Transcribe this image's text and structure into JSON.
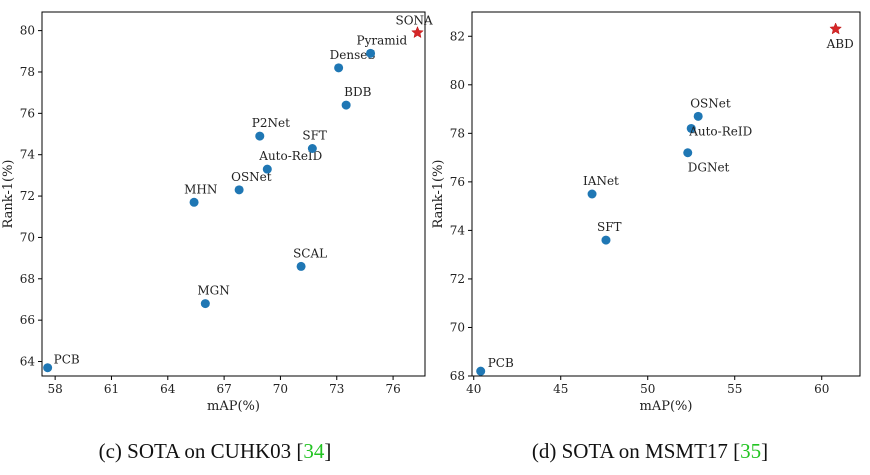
{
  "chart_data": [
    {
      "type": "scatter",
      "xlabel": "mAP(%)",
      "ylabel": "Rank-1(%)",
      "caption": {
        "text": "(c) SOTA on CUHK03 [",
        "ref": "34",
        "close": "]"
      },
      "xlim": [
        57.3,
        77.7
      ],
      "ylim": [
        63.3,
        80.9
      ],
      "xticks": [
        58,
        61,
        64,
        67,
        70,
        73,
        76
      ],
      "yticks": [
        64,
        66,
        68,
        70,
        72,
        74,
        76,
        78,
        80
      ],
      "points": [
        {
          "label": "PCB",
          "x": 57.6,
          "y": 63.7,
          "marker": "circle"
        },
        {
          "label": "MGN",
          "x": 66.0,
          "y": 66.8,
          "marker": "circle"
        },
        {
          "label": "SCAL",
          "x": 71.1,
          "y": 68.6,
          "marker": "circle"
        },
        {
          "label": "MHN",
          "x": 65.4,
          "y": 71.7,
          "marker": "circle"
        },
        {
          "label": "OSNet",
          "x": 67.8,
          "y": 72.3,
          "marker": "circle"
        },
        {
          "label": "Auto-ReID",
          "x": 69.3,
          "y": 73.3,
          "marker": "circle"
        },
        {
          "label": "P2Net",
          "x": 68.9,
          "y": 74.9,
          "marker": "circle"
        },
        {
          "label": "SFT",
          "x": 71.7,
          "y": 74.3,
          "marker": "circle"
        },
        {
          "label": "BDB",
          "x": 73.5,
          "y": 76.4,
          "marker": "circle"
        },
        {
          "label": "DenseS",
          "x": 73.1,
          "y": 78.2,
          "marker": "circle"
        },
        {
          "label": "Pyramid",
          "x": 74.8,
          "y": 78.9,
          "marker": "circle"
        },
        {
          "label": "SONA",
          "x": 77.3,
          "y": 79.9,
          "marker": "star"
        }
      ],
      "colors": {
        "circle": "#1f77b4",
        "star": "#d62728"
      }
    },
    {
      "type": "scatter",
      "xlabel": "mAP(%)",
      "ylabel": "Rank-1(%)",
      "caption": {
        "text": "(d) SOTA on MSMT17 [",
        "ref": "35",
        "close": "]"
      },
      "xlim": [
        39.9,
        62.2
      ],
      "ylim": [
        68.0,
        83.0
      ],
      "xticks": [
        40,
        45,
        50,
        55,
        60
      ],
      "yticks": [
        68,
        70,
        72,
        74,
        76,
        78,
        80,
        82
      ],
      "points": [
        {
          "label": "PCB",
          "x": 40.4,
          "y": 68.2,
          "marker": "circle"
        },
        {
          "label": "SFT",
          "x": 47.6,
          "y": 73.6,
          "marker": "circle"
        },
        {
          "label": "IANet",
          "x": 46.8,
          "y": 75.5,
          "marker": "circle"
        },
        {
          "label": "DGNet",
          "x": 52.3,
          "y": 77.2,
          "marker": "circle"
        },
        {
          "label": "Auto-ReID",
          "x": 52.5,
          "y": 78.2,
          "marker": "circle"
        },
        {
          "label": "OSNet",
          "x": 52.9,
          "y": 78.7,
          "marker": "circle"
        },
        {
          "label": "ABD",
          "x": 60.8,
          "y": 82.3,
          "marker": "star"
        }
      ],
      "colors": {
        "circle": "#1f77b4",
        "star": "#d62728"
      }
    }
  ]
}
